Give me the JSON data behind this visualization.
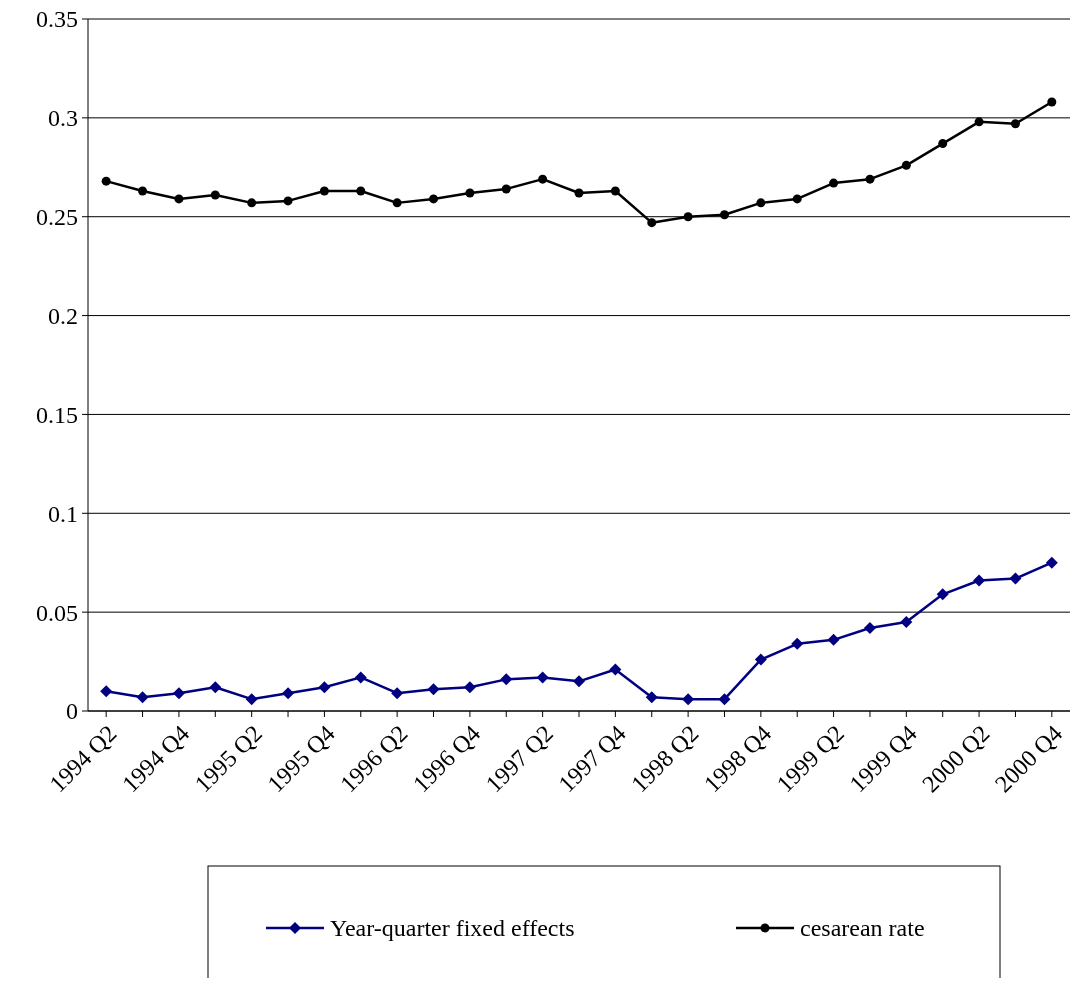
{
  "chart_data": {
    "type": "line",
    "categories": [
      "1994 Q2",
      null,
      "1994 Q4",
      null,
      "1995 Q2",
      null,
      "1995 Q4",
      null,
      "1996 Q2",
      null,
      "1996 Q4",
      null,
      "1997 Q2",
      null,
      "1997 Q4",
      null,
      "1998 Q2",
      null,
      "1998 Q4",
      null,
      "1999 Q2",
      null,
      "1999 Q4",
      null,
      "2000 Q2",
      null,
      "2000 Q4"
    ],
    "series": [
      {
        "name": "Year-quarter fixed effects",
        "color": "#000080",
        "marker": "diamond",
        "values": [
          0.01,
          0.007,
          0.009,
          0.012,
          0.006,
          0.009,
          0.012,
          0.017,
          0.009,
          0.011,
          0.012,
          0.016,
          0.017,
          0.015,
          0.021,
          0.007,
          0.006,
          0.006,
          0.026,
          0.034,
          0.036,
          0.042,
          0.045,
          0.059,
          0.066,
          0.067,
          0.075
        ]
      },
      {
        "name": "cesarean rate",
        "color": "#000000",
        "marker": "circle",
        "values": [
          0.268,
          0.263,
          0.259,
          0.261,
          0.257,
          0.258,
          0.263,
          0.263,
          0.257,
          0.259,
          0.262,
          0.264,
          0.269,
          0.262,
          0.263,
          0.247,
          0.25,
          0.251,
          0.257,
          0.259,
          0.267,
          0.269,
          0.276,
          0.287,
          0.298,
          0.297,
          0.308
        ]
      }
    ],
    "ylim": [
      0,
      0.35
    ],
    "yticks": [
      0,
      0.05,
      0.1,
      0.15,
      0.2,
      0.25,
      0.3,
      0.35
    ],
    "grid": "y",
    "legend": "bottom"
  }
}
